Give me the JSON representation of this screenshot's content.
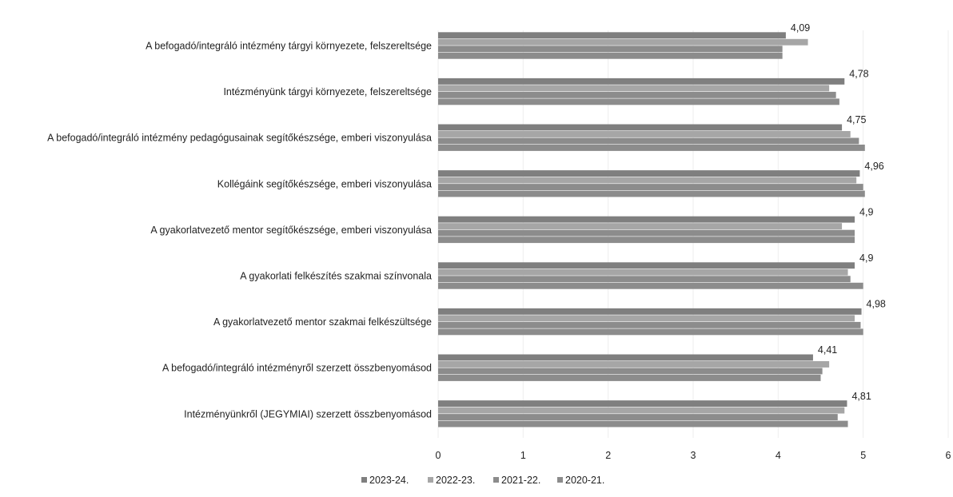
{
  "chart_data": {
    "type": "bar",
    "orientation": "horizontal",
    "categories": [
      "A befogadó/integráló intézmény tárgyi környezete, felszereltsége",
      "Intézményünk tárgyi környezete, felszereltsége",
      "A befogadó/integráló intézmény pedagógusainak segítőkészsége, emberi viszonyulása",
      "Kollégáink segítőkészsége, emberi viszonyulása",
      "A gyakorlatvezető mentor segítőkészsége, emberi viszonyulása",
      "A gyakorlati felkészítés szakmai színvonala",
      "A gyakorlatvezető mentor szakmai felkészültsége",
      "A befogadó/integráló intézményről szerzett összbenyomásod",
      "Intézményünkről (JEGYMIAI) szerzett összbenyomásod"
    ],
    "series": [
      {
        "name": "2023-24.",
        "values": [
          4.09,
          4.78,
          4.75,
          4.96,
          4.9,
          4.9,
          4.98,
          4.41,
          4.81
        ],
        "color": "#7f7f7f"
      },
      {
        "name": "2022-23.",
        "values": [
          4.35,
          4.6,
          4.85,
          4.92,
          4.75,
          4.82,
          4.9,
          4.6,
          4.78
        ],
        "color": "#a6a6a6"
      },
      {
        "name": "2021-22.",
        "values": [
          4.05,
          4.68,
          4.95,
          5.0,
          4.9,
          4.85,
          4.97,
          4.52,
          4.7
        ],
        "color": "#8c8c8c"
      },
      {
        "name": "2020-21.",
        "values": [
          4.05,
          4.72,
          5.02,
          5.02,
          4.9,
          5.0,
          5.0,
          4.5,
          4.82
        ],
        "color": "#8c8c8c"
      }
    ],
    "data_labels": [
      "4,09",
      "4,78",
      "4,75",
      "4,96",
      "4,9",
      "4,9",
      "4,98",
      "4,41",
      "4,81"
    ],
    "x_ticks": [
      "0",
      "1",
      "2",
      "3",
      "4",
      "5",
      "6"
    ],
    "xlim": [
      0,
      6
    ],
    "legend_position": "bottom",
    "grid": true
  }
}
